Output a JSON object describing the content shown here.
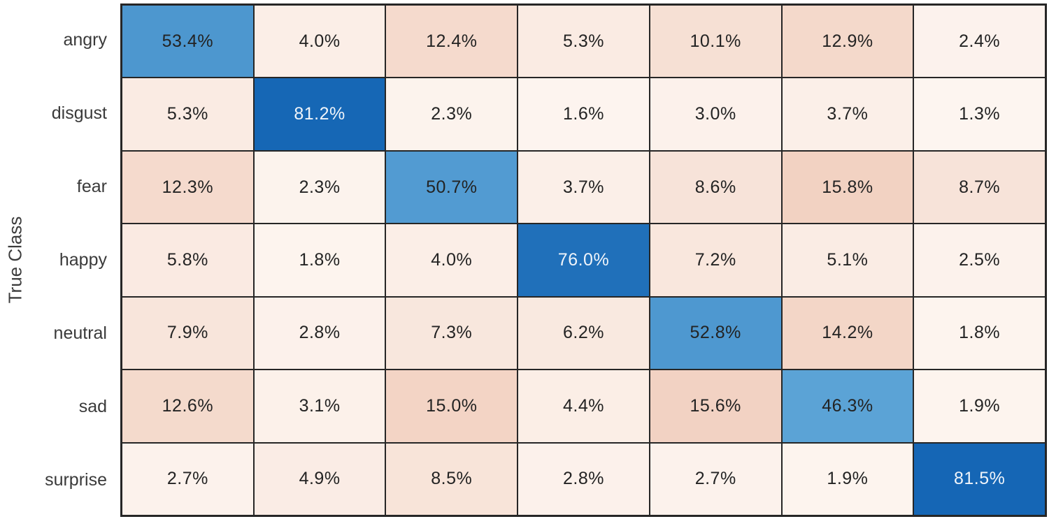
{
  "chart_data": {
    "type": "heatmap",
    "subtype": "confusion_matrix",
    "title": "",
    "xlabel": "",
    "ylabel": "True Class",
    "unit": "%",
    "value_format": "one_decimal_percent",
    "legend_position": "none",
    "grid_lines": true,
    "classes": [
      "angry",
      "disgust",
      "fear",
      "happy",
      "neutral",
      "sad",
      "surprise"
    ],
    "matrix_percent": [
      [
        53.4,
        4.0,
        12.4,
        5.3,
        10.1,
        12.9,
        2.4
      ],
      [
        5.3,
        81.2,
        2.3,
        1.6,
        3.0,
        3.7,
        1.3
      ],
      [
        12.3,
        2.3,
        50.7,
        3.7,
        8.6,
        15.8,
        8.7
      ],
      [
        5.8,
        1.8,
        4.0,
        76.0,
        7.2,
        5.1,
        2.5
      ],
      [
        7.9,
        2.8,
        7.3,
        6.2,
        52.8,
        14.2,
        1.8
      ],
      [
        12.6,
        3.1,
        15.0,
        4.4,
        15.6,
        46.3,
        1.9
      ],
      [
        2.7,
        4.9,
        8.5,
        2.8,
        2.7,
        1.9,
        81.5
      ]
    ],
    "colors": {
      "diag_low": "#5BA3D6",
      "diag_low_value": 46.3,
      "diag_high": "#1566B5",
      "diag_high_value": 81.5,
      "offdiag_low": "#FDF5F0",
      "offdiag_low_value": 1.3,
      "offdiag_high": "#F2D2C2",
      "offdiag_high_value": 15.8,
      "grid_line": "#262626",
      "dark_text": "#232323",
      "light_text": "#EFF4FA",
      "light_text_threshold": 60
    }
  }
}
